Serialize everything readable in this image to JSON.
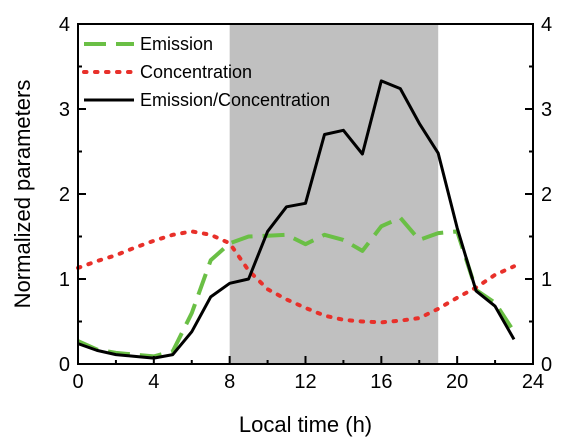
{
  "chart_data": {
    "type": "line",
    "xlabel": "Local time (h)",
    "ylabel": "Normalized parameters",
    "xlim": [
      0,
      24
    ],
    "ylim": [
      0,
      4
    ],
    "x_ticks": [
      "0",
      "4",
      "8",
      "12",
      "16",
      "20",
      "24"
    ],
    "y_ticks": [
      "0",
      "1",
      "2",
      "3",
      "4"
    ],
    "right_y_ticks": [
      "0",
      "1",
      "2",
      "3",
      "4"
    ],
    "grid": false,
    "legend_position": "top-left",
    "shaded_region": {
      "x_start": 8,
      "x_end": 19,
      "color": "#c0c0c0"
    },
    "x": [
      0,
      1,
      2,
      3,
      4,
      5,
      6,
      7,
      8,
      9,
      10,
      11,
      12,
      13,
      14,
      15,
      16,
      17,
      18,
      19,
      20,
      21,
      22,
      23
    ],
    "series": [
      {
        "name": "Emission",
        "style": "dashed",
        "color": "#6abf45",
        "values": [
          0.27,
          0.17,
          0.13,
          0.11,
          0.09,
          0.15,
          0.6,
          1.22,
          1.42,
          1.5,
          1.51,
          1.52,
          1.41,
          1.52,
          1.46,
          1.33,
          1.62,
          1.72,
          1.46,
          1.54,
          1.56,
          0.87,
          0.72,
          0.38
        ]
      },
      {
        "name": "Concentration",
        "style": "dotted",
        "color": "#e8302a",
        "values": [
          1.13,
          1.21,
          1.28,
          1.37,
          1.45,
          1.52,
          1.56,
          1.52,
          1.42,
          1.1,
          0.88,
          0.76,
          0.66,
          0.57,
          0.52,
          0.5,
          0.49,
          0.51,
          0.54,
          0.65,
          0.78,
          0.9,
          1.05,
          1.15
        ]
      },
      {
        "name": "Emission/Concentration",
        "style": "solid",
        "color": "#000000",
        "values": [
          0.24,
          0.16,
          0.11,
          0.09,
          0.07,
          0.11,
          0.38,
          0.79,
          0.95,
          1.0,
          1.56,
          1.85,
          1.89,
          2.7,
          2.75,
          2.47,
          3.33,
          3.24,
          2.83,
          2.48,
          1.6,
          0.86,
          0.68,
          0.29
        ]
      }
    ]
  }
}
